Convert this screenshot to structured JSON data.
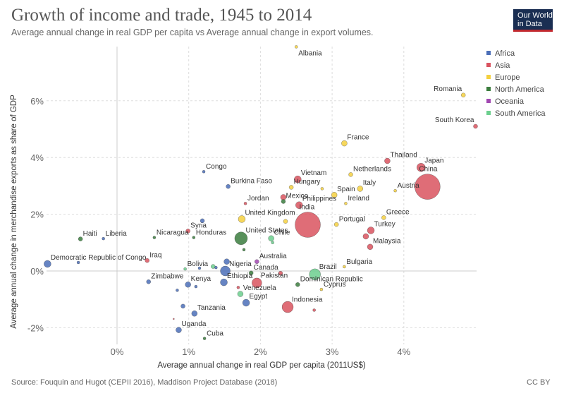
{
  "header": {
    "title": "Growth of income and trade, 1945 to 2014",
    "subtitle": "Average annual change in real GDP per capita vs Average annual change in export volumes."
  },
  "logo": {
    "line1": "Our World",
    "line2": "in Data"
  },
  "footer": {
    "source": "Source: Fouquin and Hugot (CEPII 2016), Maddison Project Database (2018)",
    "license": "CC BY"
  },
  "colors": {
    "Africa": "#4b6eb8",
    "Asia": "#d9535f",
    "Europe": "#f4d03f",
    "North America": "#3b7d3e",
    "Oceania": "#a147b1",
    "South America": "#6ccf8e"
  },
  "chart_data": {
    "type": "scatter",
    "xlabel": "Average annual change in real GDP per capita (2011US$)",
    "ylabel": "Average annual change in merchandise exports as share of GDP",
    "xlim": [
      -1.0,
      5.0
    ],
    "ylim": [
      -2.5,
      9.0
    ],
    "xticks": [
      0,
      1,
      2,
      3,
      4
    ],
    "xtick_labels": [
      "0%",
      "1%",
      "2%",
      "3%",
      "4%"
    ],
    "yticks": [
      -2,
      0,
      2,
      4,
      6
    ],
    "ytick_labels": [
      "-2%",
      "0%",
      "2%",
      "4%",
      "6%"
    ],
    "grid": true,
    "legend_position": "right",
    "legend": [
      "Africa",
      "Asia",
      "Europe",
      "North America",
      "Oceania",
      "South America"
    ],
    "points": [
      {
        "label": "Albania",
        "region": "Europe",
        "x": 2.5,
        "y": 7.9,
        "size": 2
      },
      {
        "label": "Romania",
        "region": "Europe",
        "x": 4.83,
        "y": 6.2,
        "size": 3
      },
      {
        "label": "South Korea",
        "region": "Asia",
        "x": 5.0,
        "y": 5.1,
        "size": 3
      },
      {
        "label": "France",
        "region": "Europe",
        "x": 3.17,
        "y": 4.5,
        "size": 4
      },
      {
        "label": "Thailand",
        "region": "Asia",
        "x": 3.77,
        "y": 3.88,
        "size": 4
      },
      {
        "label": "Japan",
        "region": "Asia",
        "x": 4.24,
        "y": 3.65,
        "size": 6
      },
      {
        "label": "China",
        "region": "Asia",
        "x": 4.33,
        "y": 2.97,
        "size": 18
      },
      {
        "label": "Congo",
        "region": "Africa",
        "x": 1.21,
        "y": 3.5,
        "size": 2
      },
      {
        "label": "Vietnam",
        "region": "Asia",
        "x": 2.52,
        "y": 3.23,
        "size": 5
      },
      {
        "label": "Netherlands",
        "region": "Europe",
        "x": 3.26,
        "y": 3.4,
        "size": 3
      },
      {
        "label": "Burkina Faso",
        "region": "Africa",
        "x": 1.55,
        "y": 2.98,
        "size": 3
      },
      {
        "label": "Hungary",
        "region": "Europe",
        "x": 2.43,
        "y": 2.95,
        "size": 3
      },
      {
        "label": "Italy",
        "region": "Europe",
        "x": 3.39,
        "y": 2.9,
        "size": 4
      },
      {
        "label": "Austria",
        "region": "Europe",
        "x": 3.88,
        "y": 2.83,
        "size": 2
      },
      {
        "label": "Spain",
        "region": "Europe",
        "x": 3.03,
        "y": 2.68,
        "size": 4
      },
      {
        "label": "Mexico",
        "region": "North America",
        "x": 2.32,
        "y": 2.45,
        "size": 3
      },
      {
        "label": "Jordan",
        "region": "Asia",
        "x": 1.79,
        "y": 2.38,
        "size": 2
      },
      {
        "label": "Philippines",
        "region": "Asia",
        "x": 2.54,
        "y": 2.32,
        "size": 5
      },
      {
        "label": "Ireland",
        "region": "Europe",
        "x": 3.19,
        "y": 2.38,
        "size": 2
      },
      {
        "label": "United Kingdom",
        "region": "Europe",
        "x": 1.74,
        "y": 1.83,
        "size": 5
      },
      {
        "label": "India",
        "region": "Asia",
        "x": 2.66,
        "y": 1.63,
        "size": 18
      },
      {
        "label": "Greece",
        "region": "Europe",
        "x": 3.72,
        "y": 1.88,
        "size": 3
      },
      {
        "label": "Portugal",
        "region": "Europe",
        "x": 3.06,
        "y": 1.64,
        "size": 3
      },
      {
        "label": "Turkey",
        "region": "Asia",
        "x": 3.54,
        "y": 1.43,
        "size": 5
      },
      {
        "label": "Syria",
        "region": "Asia",
        "x": 0.99,
        "y": 1.41,
        "size": 3
      },
      {
        "label": "Nicaragua",
        "region": "North America",
        "x": 0.52,
        "y": 1.18,
        "size": 2
      },
      {
        "label": "Honduras",
        "region": "North America",
        "x": 1.07,
        "y": 1.18,
        "size": 2
      },
      {
        "label": "United States",
        "region": "North America",
        "x": 1.73,
        "y": 1.15,
        "size": 9
      },
      {
        "label": "Chile",
        "region": "South America",
        "x": 2.15,
        "y": 1.15,
        "size": 4
      },
      {
        "label": "Haiti",
        "region": "North America",
        "x": -0.51,
        "y": 1.13,
        "size": 3
      },
      {
        "label": "Liberia",
        "region": "Africa",
        "x": -0.19,
        "y": 1.14,
        "size": 2
      },
      {
        "label": "Malaysia",
        "region": "Asia",
        "x": 3.53,
        "y": 0.85,
        "size": 4
      },
      {
        "label": "Iraq",
        "region": "Asia",
        "x": 0.42,
        "y": 0.37,
        "size": 3
      },
      {
        "label": "Democratic Republic of Congo",
        "region": "Africa",
        "x": -0.97,
        "y": 0.25,
        "size": 5
      },
      {
        "label": "Bolivia",
        "region": "South America",
        "x": 0.95,
        "y": 0.07,
        "size": 2
      },
      {
        "label": "Australia",
        "region": "Oceania",
        "x": 1.95,
        "y": 0.33,
        "size": 3
      },
      {
        "label": "Nigeria",
        "region": "Africa",
        "x": 1.51,
        "y": 0.0,
        "size": 7
      },
      {
        "label": "Canada",
        "region": "North America",
        "x": 1.87,
        "y": -0.07,
        "size": 3
      },
      {
        "label": "Brazil",
        "region": "South America",
        "x": 2.76,
        "y": -0.12,
        "size": 8
      },
      {
        "label": "Bulgaria",
        "region": "Europe",
        "x": 3.17,
        "y": 0.15,
        "size": 2
      },
      {
        "label": "Zimbabwe",
        "region": "Africa",
        "x": 0.44,
        "y": -0.38,
        "size": 3
      },
      {
        "label": "Kenya",
        "region": "Africa",
        "x": 0.99,
        "y": -0.48,
        "size": 4
      },
      {
        "label": "Ethiopia",
        "region": "Africa",
        "x": 1.49,
        "y": -0.4,
        "size": 5
      },
      {
        "label": "Pakistan",
        "region": "Asia",
        "x": 1.95,
        "y": -0.42,
        "size": 7
      },
      {
        "label": "Dominican Republic",
        "region": "North America",
        "x": 2.52,
        "y": -0.48,
        "size": 3
      },
      {
        "label": "Cyprus",
        "region": "Europe",
        "x": 2.85,
        "y": -0.65,
        "size": 2
      },
      {
        "label": "Venezuela",
        "region": "South America",
        "x": 1.72,
        "y": -0.81,
        "size": 4
      },
      {
        "label": "Egypt",
        "region": "Africa",
        "x": 1.8,
        "y": -1.12,
        "size": 5
      },
      {
        "label": "Indonesia",
        "region": "Asia",
        "x": 2.38,
        "y": -1.27,
        "size": 8
      },
      {
        "label": "Tanzania",
        "region": "Africa",
        "x": 1.08,
        "y": -1.5,
        "size": 4
      },
      {
        "label": "Uganda",
        "region": "Africa",
        "x": 0.86,
        "y": -2.08,
        "size": 4
      },
      {
        "label": "Cuba",
        "region": "North America",
        "x": 1.22,
        "y": -2.38,
        "size": 2
      },
      {
        "label": "",
        "region": "Africa",
        "x": 1.19,
        "y": 1.77,
        "size": 3
      },
      {
        "label": "",
        "region": "Asia",
        "x": 2.32,
        "y": 2.6,
        "size": 4
      },
      {
        "label": "",
        "region": "Europe",
        "x": 2.35,
        "y": 1.75,
        "size": 3
      },
      {
        "label": "",
        "region": "South America",
        "x": 2.17,
        "y": 1.0,
        "size": 2
      },
      {
        "label": "",
        "region": "Africa",
        "x": 1.53,
        "y": 0.33,
        "size": 4
      },
      {
        "label": "",
        "region": "Africa",
        "x": 1.38,
        "y": 0.12,
        "size": 2
      },
      {
        "label": "",
        "region": "South America",
        "x": 1.34,
        "y": 0.16,
        "size": 3
      },
      {
        "label": "",
        "region": "Asia",
        "x": 2.28,
        "y": -0.08,
        "size": 3
      },
      {
        "label": "",
        "region": "Africa",
        "x": 1.1,
        "y": -0.55,
        "size": 2
      },
      {
        "label": "",
        "region": "Asia",
        "x": 1.69,
        "y": -0.58,
        "size": 2
      },
      {
        "label": "",
        "region": "Africa",
        "x": 0.84,
        "y": -0.68,
        "size": 2
      },
      {
        "label": "",
        "region": "Africa",
        "x": 0.92,
        "y": -1.24,
        "size": 3
      },
      {
        "label": "",
        "region": "Asia",
        "x": 2.75,
        "y": -1.38,
        "size": 2
      },
      {
        "label": "",
        "region": "Asia",
        "x": 0.79,
        "y": -1.69,
        "size": 1
      },
      {
        "label": "",
        "region": "Asia",
        "x": 3.47,
        "y": 1.22,
        "size": 4
      },
      {
        "label": "",
        "region": "Europe",
        "x": 2.86,
        "y": 2.9,
        "size": 2
      },
      {
        "label": "",
        "region": "North America",
        "x": 1.77,
        "y": 0.75,
        "size": 2
      },
      {
        "label": "",
        "region": "Africa",
        "x": 1.15,
        "y": 0.1,
        "size": 2
      },
      {
        "label": "",
        "region": "Africa",
        "x": -0.54,
        "y": 0.3,
        "size": 2
      }
    ]
  }
}
